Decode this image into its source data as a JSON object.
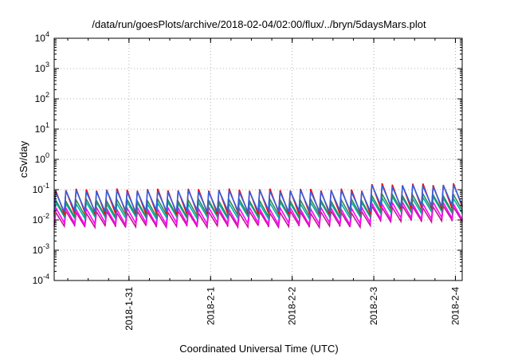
{
  "chart_data": {
    "type": "line",
    "title": "/data/run/goesPlots/archive/2018-02-04/02:00/flux/../bryn/5daysMars.plot",
    "xlabel": "Coordinated Universal Time (UTC)",
    "ylabel": "cSv/day",
    "y_scale": "log",
    "ylim": [
      0.0001,
      10000
    ],
    "xlim": [
      "2018-01-30T02:00",
      "2018-02-04T02:00"
    ],
    "y_ticks": [
      {
        "value": 0.0001,
        "base": "10",
        "exp": "-4"
      },
      {
        "value": 0.001,
        "base": "10",
        "exp": "-3"
      },
      {
        "value": 0.01,
        "base": "10",
        "exp": "-2"
      },
      {
        "value": 0.1,
        "base": "10",
        "exp": "-1"
      },
      {
        "value": 1,
        "base": "10",
        "exp": "0"
      },
      {
        "value": 10,
        "base": "10",
        "exp": "1"
      },
      {
        "value": 100,
        "base": "10",
        "exp": "2"
      },
      {
        "value": 1000,
        "base": "10",
        "exp": "3"
      },
      {
        "value": 10000,
        "base": "10",
        "exp": "4"
      }
    ],
    "x_ticks": [
      {
        "value": "2018-01-31T00:00",
        "label": "2018-1-31"
      },
      {
        "value": "2018-02-01T00:00",
        "label": "2018-2-1"
      },
      {
        "value": "2018-02-02T00:00",
        "label": "2018-2-2"
      },
      {
        "value": "2018-02-03T00:00",
        "label": "2018-2-3"
      },
      {
        "value": "2018-02-04T00:00",
        "label": "2018-2-4"
      }
    ],
    "grid": true,
    "series": [
      {
        "color": "#c0188c",
        "low": 0.0062,
        "peak": 0.018
      },
      {
        "color": "#ff00ff",
        "low": 0.0075,
        "peak": 0.024
      },
      {
        "color": "#00b0b0",
        "low": 0.012,
        "peak": 0.036
      },
      {
        "color": "#2e8b57",
        "low": 0.014,
        "peak": 0.045
      },
      {
        "color": "#ff0000",
        "low": 0.017,
        "peak": 0.1
      },
      {
        "color": "#3060e0",
        "low": 0.02,
        "peak": 0.09
      }
    ],
    "cycle_hours": 3,
    "late_rise_start": "2018-02-02T21:00",
    "late_rise_factor": 1.5
  }
}
